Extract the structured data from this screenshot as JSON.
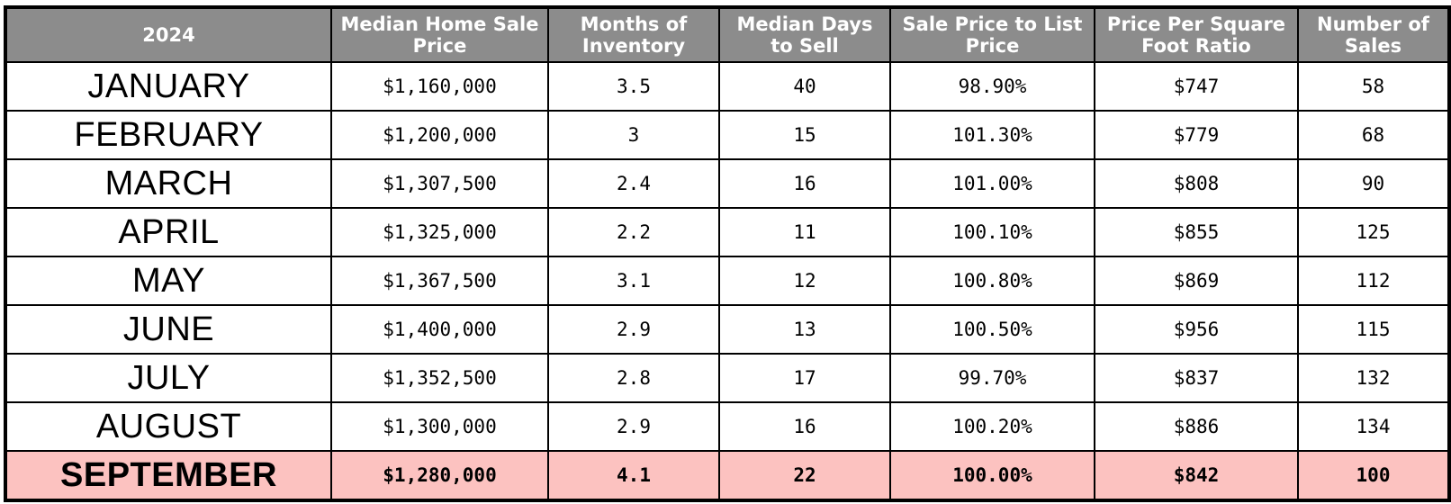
{
  "table": {
    "headers": [
      "2024",
      "Median Home Sale Price",
      "Months of Inventory",
      "Median Days to Sell",
      "Sale Price to List Price",
      "Price Per Square Foot Ratio",
      "Number of Sales"
    ],
    "rows": [
      {
        "month": "JANUARY",
        "median_price": "$1,160,000",
        "months_inventory": "3.5",
        "median_days": "40",
        "sale_to_list": "98.90%",
        "price_per_sqft": "$747",
        "num_sales": "58"
      },
      {
        "month": "FEBRUARY",
        "median_price": "$1,200,000",
        "months_inventory": "3",
        "median_days": "15",
        "sale_to_list": "101.30%",
        "price_per_sqft": "$779",
        "num_sales": "68"
      },
      {
        "month": "MARCH",
        "median_price": "$1,307,500",
        "months_inventory": "2.4",
        "median_days": "16",
        "sale_to_list": "101.00%",
        "price_per_sqft": "$808",
        "num_sales": "90"
      },
      {
        "month": "APRIL",
        "median_price": "$1,325,000",
        "months_inventory": "2.2",
        "median_days": "11",
        "sale_to_list": "100.10%",
        "price_per_sqft": "$855",
        "num_sales": "125"
      },
      {
        "month": "MAY",
        "median_price": "$1,367,500",
        "months_inventory": "3.1",
        "median_days": "12",
        "sale_to_list": "100.80%",
        "price_per_sqft": "$869",
        "num_sales": "112"
      },
      {
        "month": "JUNE",
        "median_price": "$1,400,000",
        "months_inventory": "2.9",
        "median_days": "13",
        "sale_to_list": "100.50%",
        "price_per_sqft": "$956",
        "num_sales": "115"
      },
      {
        "month": "JULY",
        "median_price": "$1,352,500",
        "months_inventory": "2.8",
        "median_days": "17",
        "sale_to_list": "99.70%",
        "price_per_sqft": "$837",
        "num_sales": "132"
      },
      {
        "month": "AUGUST",
        "median_price": "$1,300,000",
        "months_inventory": "2.9",
        "median_days": "16",
        "sale_to_list": "100.20%",
        "price_per_sqft": "$886",
        "num_sales": "134"
      },
      {
        "month": "SEPTEMBER",
        "median_price": "$1,280,000",
        "months_inventory": "4.1",
        "median_days": "22",
        "sale_to_list": "100.00%",
        "price_per_sqft": "$842",
        "num_sales": "100"
      }
    ],
    "highlight_row_index": 8
  },
  "colors": {
    "header_bg": "#8c8c8c",
    "header_text": "#ffffff",
    "highlight_bg": "#fcc2c0",
    "border": "#000000"
  }
}
